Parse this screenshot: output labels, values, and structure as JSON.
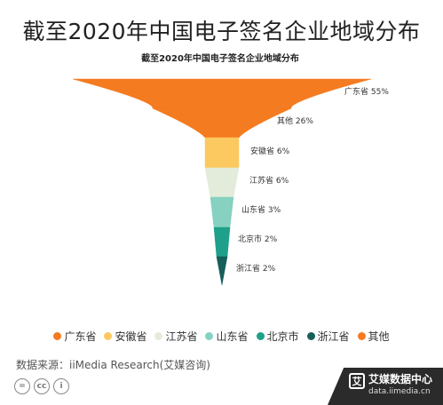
{
  "page_title": "截至2020年中国电子签名企业地域分布",
  "source": "数据来源：iiMedia Research(艾媒咨询)",
  "license_icons": [
    "equal-icon",
    "cc-icon",
    "person-icon"
  ],
  "license_text": {
    "equal": "=",
    "cc": "cc",
    "person": "i"
  },
  "brand": {
    "logo": "艾",
    "name": "艾媒数据中心",
    "url": "data.iimedia.cn"
  },
  "chart_data": {
    "type": "funnel",
    "title": "截至2020年中国电子签名企业地域分布",
    "stages": [
      {
        "label": "广东省 55%",
        "name": "广东省",
        "value": 55,
        "color": "#F47B20"
      },
      {
        "label": "其他 26%",
        "name": "其他",
        "value": 26,
        "color": "#F47B20"
      },
      {
        "label": "安徽省 6%",
        "name": "安徽省",
        "value": 6,
        "color": "#FBC960"
      },
      {
        "label": "江苏省 6%",
        "name": "江苏省",
        "value": 6,
        "color": "#E3ECDA"
      },
      {
        "label": "山东省 3%",
        "name": "山东省",
        "value": 3,
        "color": "#86D1C0"
      },
      {
        "label": "北京市 2%",
        "name": "北京市",
        "value": 2,
        "color": "#1FA08A"
      },
      {
        "label": "浙江省 2%",
        "name": "浙江省",
        "value": 2,
        "color": "#155E5A"
      }
    ],
    "legend": [
      {
        "name": "广东省",
        "color": "#F47B20"
      },
      {
        "name": "安徽省",
        "color": "#FBC960"
      },
      {
        "name": "江苏省",
        "color": "#E3ECDA"
      },
      {
        "name": "山东省",
        "color": "#86D1C0"
      },
      {
        "name": "北京市",
        "color": "#1FA08A"
      },
      {
        "name": "浙江省",
        "color": "#155E5A"
      },
      {
        "name": "其他",
        "color": "#F47B20"
      }
    ],
    "legend_position": "bottom"
  }
}
